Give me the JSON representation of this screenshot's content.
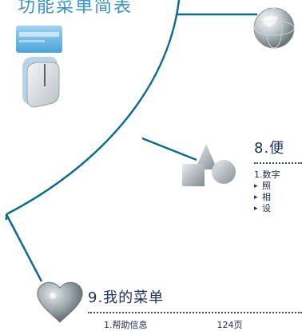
{
  "header": {
    "title_fragment": "功能菜单简表"
  },
  "section8": {
    "heading": "8.便",
    "subheading": "1.数字",
    "items": [
      "照",
      "相",
      "设"
    ]
  },
  "section9": {
    "heading": "9.我的菜单",
    "first_item": "1.帮助信息",
    "first_item_page": "124页"
  },
  "icons": {
    "globe": "globe-icon",
    "card": "card-icon",
    "remote": "remote-icon",
    "shapes": "shapes-icon",
    "heart": "heart-icon"
  },
  "colors": {
    "tree_line": "#0b6d8a",
    "title_blue": "#3a93c6",
    "text_dark": "#1f2f57"
  }
}
